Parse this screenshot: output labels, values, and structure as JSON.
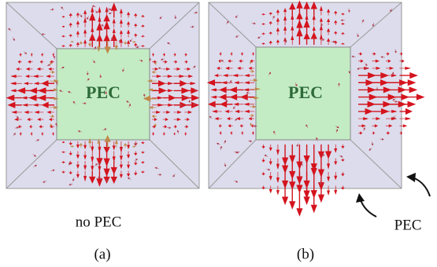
{
  "panels": [
    {
      "label": "(a)",
      "inner_label": "PEC",
      "caption": "no PEC"
    },
    {
      "label": "(b)",
      "inner_label": "PEC"
    }
  ],
  "annotation": "PEC"
}
